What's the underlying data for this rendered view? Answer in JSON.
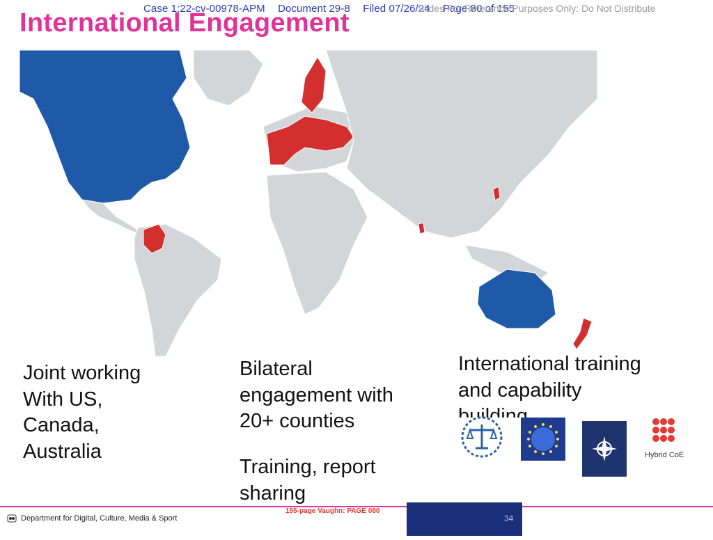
{
  "header": {
    "case": "Case 1:22-cv-00978-APM",
    "document": "Document 29-8",
    "filed": "Filed 07/26/24",
    "page": "Page 80 of 155",
    "watermark": "Slides For Reference Purposes Only: Do Not Distribute"
  },
  "slide": {
    "title": "International Engagement"
  },
  "map": {
    "highlight_colors": {
      "partner_blue": "#1f5aa8",
      "bilateral_red": "#d32f2f",
      "land_gray": "#d3d6d8",
      "border": "#ffffff"
    }
  },
  "columns": {
    "joint": "Joint working\nWith US,\nCanada,\nAustralia",
    "bilateral": "Bilateral\nengagement with\n20+ counties",
    "training": "Training, report\nsharing",
    "international": "International training\nand capability",
    "international_cut": "building"
  },
  "logos": {
    "icc": "icc-scales-logo",
    "eu": "eu-stars-logo",
    "nato": "nato-compass-logo",
    "hybrid_label": "Hybrid CoE"
  },
  "footer": {
    "department": "Department for Digital, Culture, Media & Sport",
    "bates": "155-page Vaughn: PAGE 080",
    "page_number": "34"
  }
}
